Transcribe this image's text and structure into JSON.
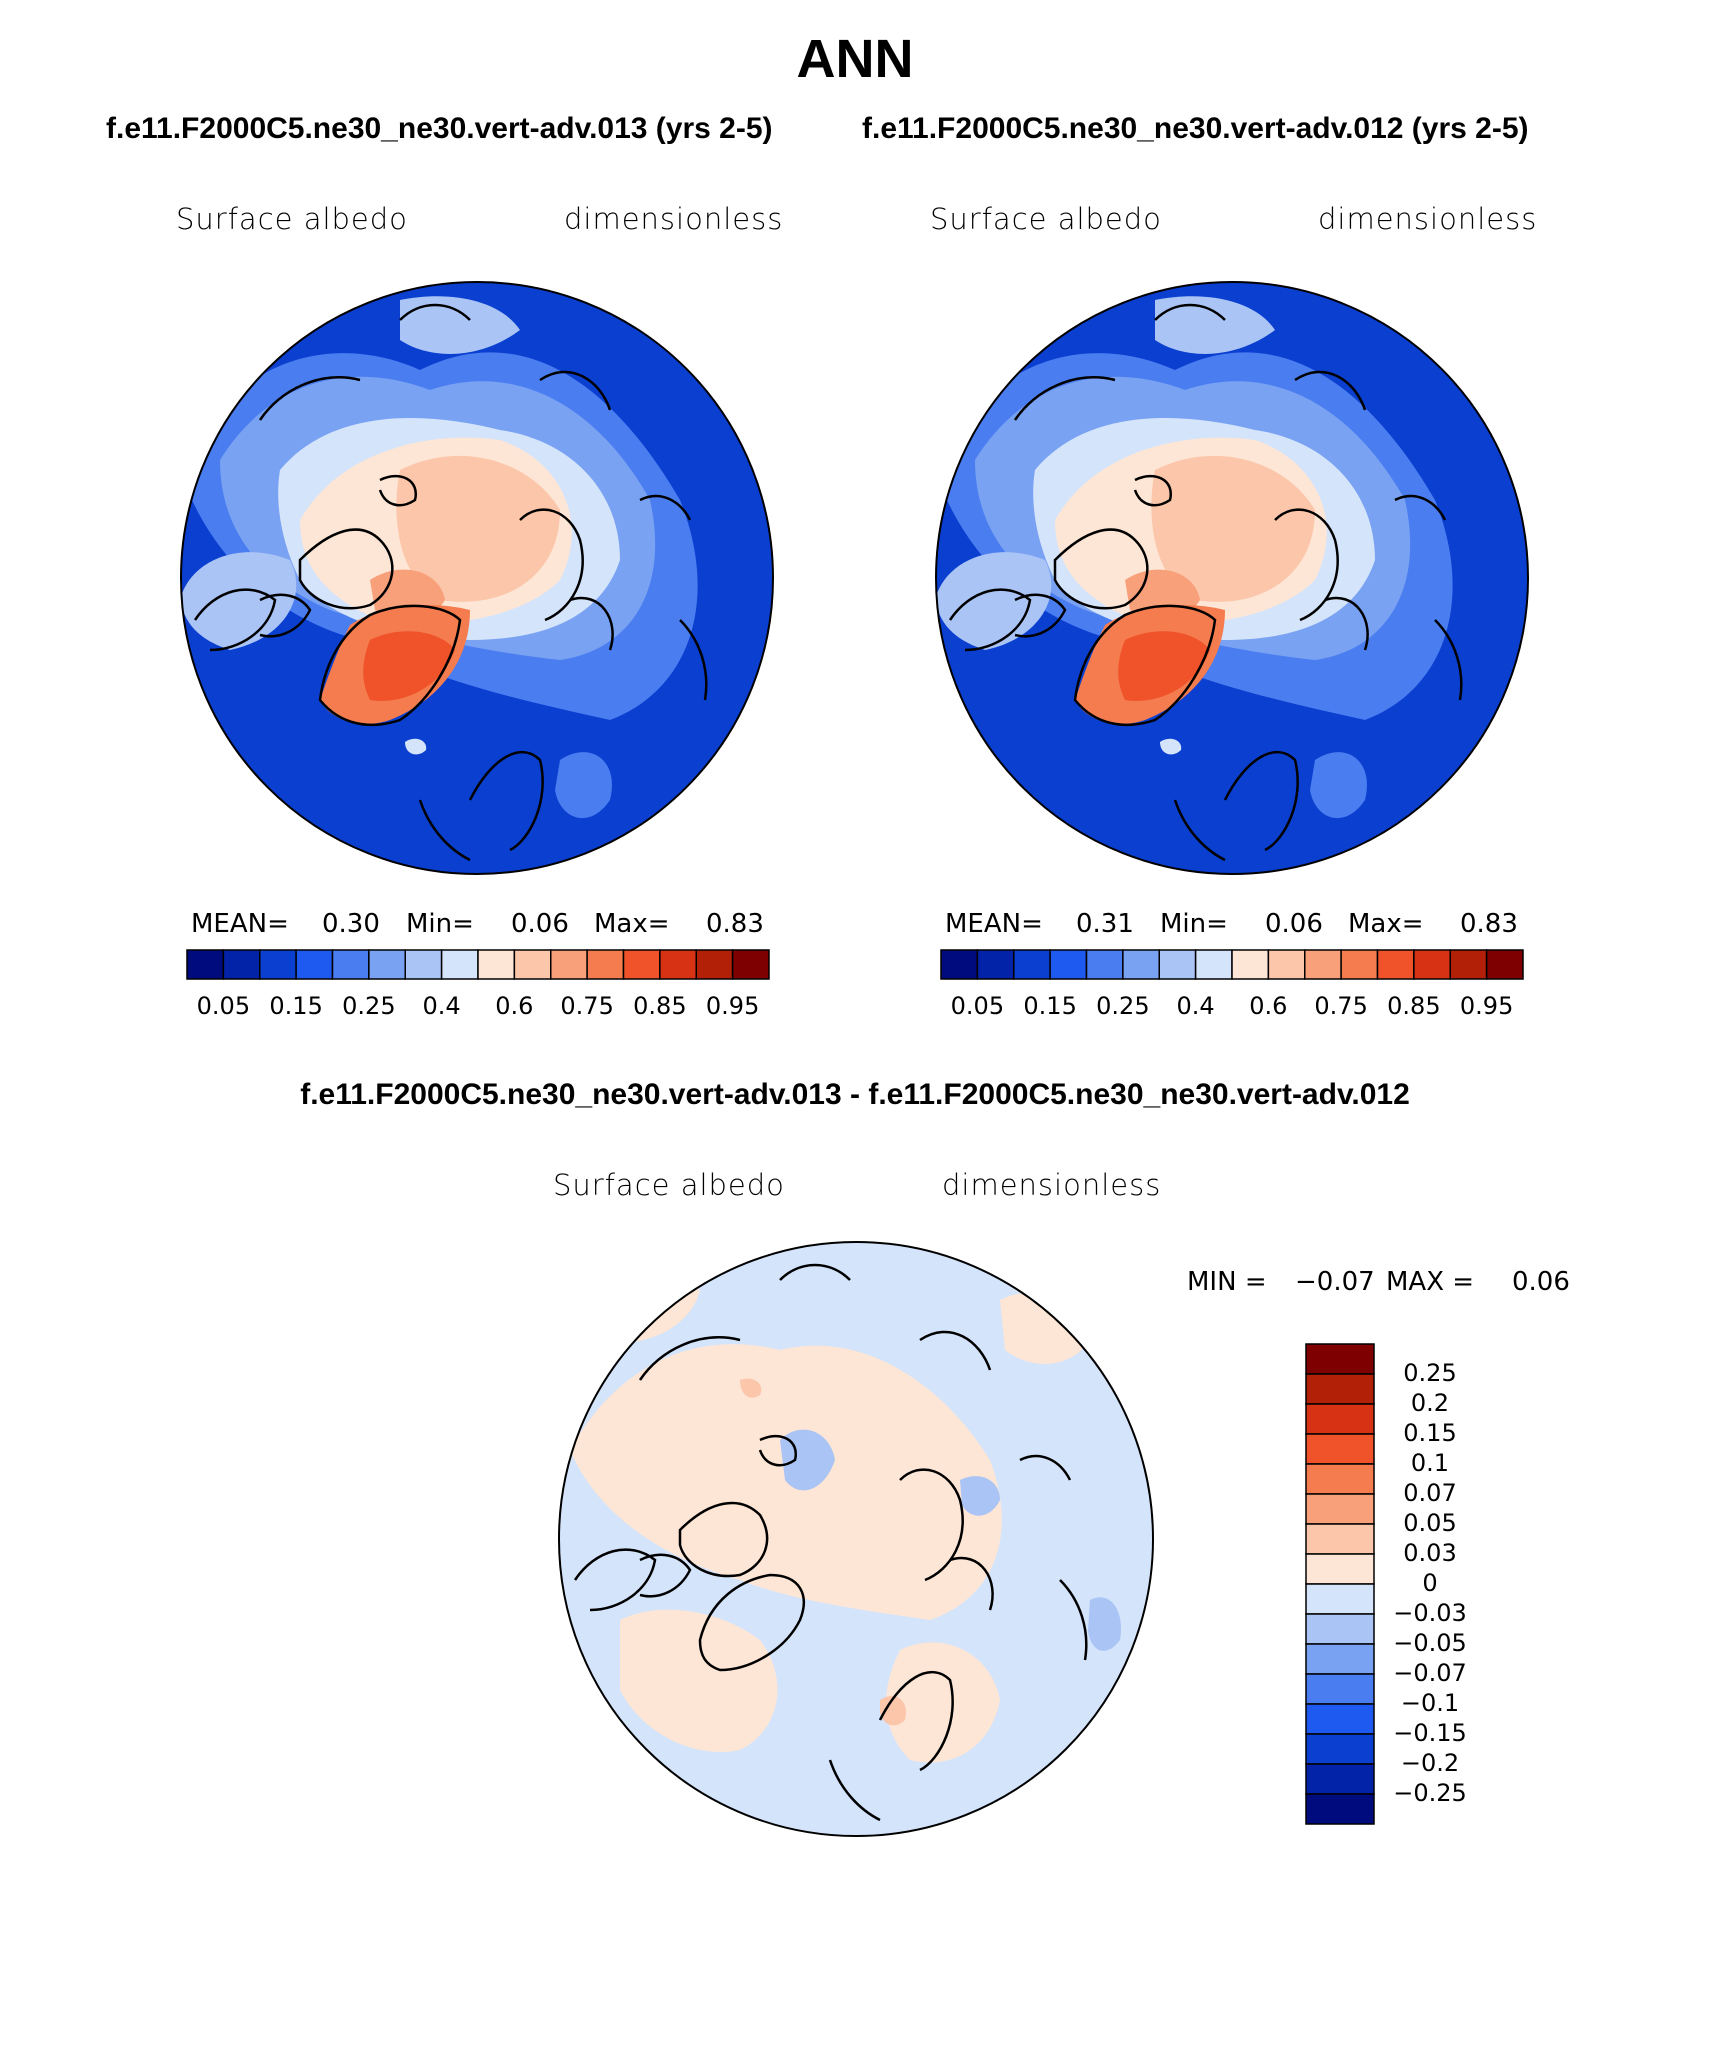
{
  "figure": {
    "title": "ANN",
    "subtitle_left": "f.e11.F2000C5.ne30_ne30.vert-adv.013 (yrs 2-5)",
    "subtitle_right": "f.e11.F2000C5.ne30_ne30.vert-adv.012 (yrs 2-5)",
    "diff_title": "f.e11.F2000C5.ne30_ne30.vert-adv.013 - f.e11.F2000C5.ne30_ne30.vert-adv.012"
  },
  "panels": [
    {
      "variable": "Surface albedo",
      "units": "dimensionless",
      "mean_label": "MEAN=",
      "mean": "0.30",
      "min_label": "Min=",
      "min": "0.06",
      "max_label": "Max=",
      "max": "0.83"
    },
    {
      "variable": "Surface albedo",
      "units": "dimensionless",
      "mean_label": "MEAN=",
      "mean": "0.31",
      "min_label": "Min=",
      "min": "0.06",
      "max_label": "Max=",
      "max": "0.83"
    }
  ],
  "diff_panel": {
    "variable": "Surface albedo",
    "units": "dimensionless",
    "min_label": "MIN =",
    "min": "−0.07",
    "max_label": "MAX =",
    "max": "0.06"
  },
  "colorbar_abs": {
    "ticks": [
      "0.05",
      "0.15",
      "0.25",
      "0.4",
      "0.6",
      "0.75",
      "0.85",
      "0.95"
    ],
    "colors": [
      "#000c7d",
      "#0223a8",
      "#0a3fd0",
      "#1f5af0",
      "#4a7df0",
      "#7aa2f3",
      "#a9c4f5",
      "#d4e4fb",
      "#fde6d6",
      "#fbc6aa",
      "#f8a07a",
      "#f47c4e",
      "#f0522a",
      "#d83214",
      "#b32008",
      "#7f0000"
    ]
  },
  "colorbar_diff": {
    "ticks": [
      "0.25",
      "0.2",
      "0.15",
      "0.1",
      "0.07",
      "0.05",
      "0.03",
      "0",
      "−0.03",
      "−0.05",
      "−0.07",
      "−0.1",
      "−0.15",
      "−0.2",
      "−0.25"
    ],
    "colors": [
      "#7f0000",
      "#b32008",
      "#d83214",
      "#f0522a",
      "#f47c4e",
      "#f8a07a",
      "#fbc6aa",
      "#fde6d6",
      "#d4e4fb",
      "#a9c4f5",
      "#7aa2f3",
      "#4a7df0",
      "#1f5af0",
      "#0a3fd0",
      "#0223a8",
      "#000c7d"
    ]
  }
}
